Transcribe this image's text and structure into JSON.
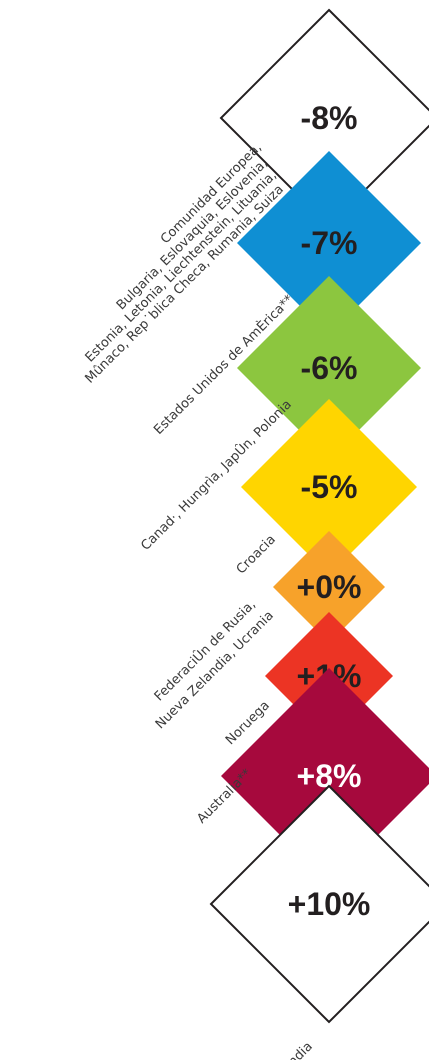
{
  "diamonds": [
    {
      "value": "-8%",
      "fill": "#ffffff",
      "text_color": "#231f20",
      "outlined": true,
      "labels": [
        "Comunidad Europea,",
        "Bulgaria, Eslovaquia, Eslovenia,",
        "Estonia, Letonia, Liechtenstein, Lituania,",
        "Mûnaco, Rep˙blica Checa, Rumania, Suiza"
      ]
    },
    {
      "value": "-7%",
      "fill": "#0f8fd3",
      "text_color": "#231f20",
      "outlined": false,
      "labels": []
    },
    {
      "value": "-6%",
      "fill": "#8cc63f",
      "text_color": "#231f20",
      "outlined": false,
      "labels": [
        "Estados Unidos de AmÈrica**"
      ]
    },
    {
      "value": "-5%",
      "fill": "#ffd500",
      "text_color": "#231f20",
      "outlined": false,
      "labels": [
        "Canad·, Hungrìa, JapÛn, Polonia"
      ]
    },
    {
      "value": "+0%",
      "fill": "#f7a22a",
      "text_color": "#231f20",
      "outlined": false,
      "labels": [
        "Croacia"
      ]
    },
    {
      "value": "+1%",
      "fill": "#ec3424",
      "text_color": "#231f20",
      "outlined": false,
      "labels": [
        "FederaciÛn de Rusia,",
        "Nueva Zelandia, Ucrania"
      ]
    },
    {
      "value": "+8%",
      "fill": "#a6093d",
      "text_color": "#ffffff",
      "outlined": false,
      "labels": [
        "Noruega"
      ]
    },
    {
      "value": "+10%",
      "fill": "#ffffff",
      "text_color": "#231f20",
      "outlined": true,
      "labels": [
        "Australia**"
      ]
    }
  ],
  "bottom_label": "Islandia",
  "outline_color": "#231f20"
}
